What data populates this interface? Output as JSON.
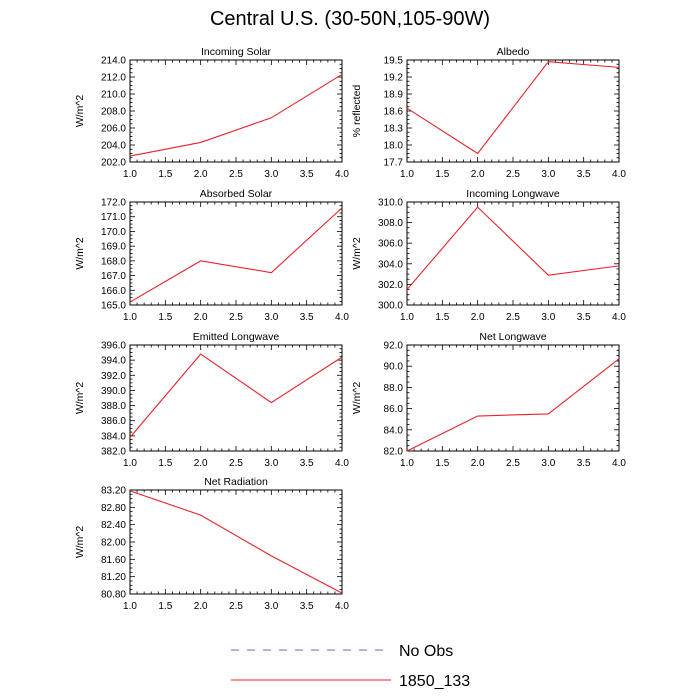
{
  "title": "Central U.S. (30-50N,105-90W)",
  "legend": [
    {
      "label": "No Obs",
      "color": "#6b6bb5",
      "dash": true
    },
    {
      "label": "1850_133",
      "color": "#e8212a",
      "dash": false
    }
  ],
  "chart_data": [
    {
      "type": "line",
      "title": "Incoming Solar",
      "ylabel": "W/m^2",
      "x": [
        1.0,
        2.0,
        3.0,
        4.0
      ],
      "xticks": [
        "1.0",
        "1.5",
        "2.0",
        "2.5",
        "3.0",
        "3.5",
        "4.0"
      ],
      "ylim": [
        202.0,
        214.0
      ],
      "yticks": [
        "202.0",
        "204.0",
        "206.0",
        "208.0",
        "210.0",
        "212.0",
        "214.0"
      ],
      "series": [
        {
          "values": [
            202.7,
            204.3,
            207.2,
            212.3
          ],
          "color": "#e8212a"
        }
      ]
    },
    {
      "type": "line",
      "title": "Albedo",
      "ylabel": "% reflected",
      "x": [
        1.0,
        2.0,
        3.0,
        4.0
      ],
      "xticks": [
        "1.0",
        "1.5",
        "2.0",
        "2.5",
        "3.0",
        "3.5",
        "4.0"
      ],
      "ylim": [
        17.7,
        19.5
      ],
      "yticks": [
        "17.7",
        "18.0",
        "18.3",
        "18.6",
        "18.9",
        "19.2",
        "19.5"
      ],
      "series": [
        {
          "values": [
            18.65,
            17.85,
            19.47,
            19.37
          ],
          "color": "#e8212a"
        }
      ]
    },
    {
      "type": "line",
      "title": "Absorbed Solar",
      "ylabel": "W/m^2",
      "x": [
        1.0,
        2.0,
        3.0,
        4.0
      ],
      "xticks": [
        "1.0",
        "1.5",
        "2.0",
        "2.5",
        "3.0",
        "3.5",
        "4.0"
      ],
      "ylim": [
        165.0,
        172.0
      ],
      "yticks": [
        "165.0",
        "166.0",
        "167.0",
        "168.0",
        "169.0",
        "170.0",
        "171.0",
        "172.0"
      ],
      "series": [
        {
          "values": [
            165.2,
            168.0,
            167.2,
            171.6
          ],
          "color": "#e8212a"
        }
      ]
    },
    {
      "type": "line",
      "title": "Incoming Longwave",
      "ylabel": "W/m^2",
      "x": [
        1.0,
        2.0,
        3.0,
        4.0
      ],
      "xticks": [
        "1.0",
        "1.5",
        "2.0",
        "2.5",
        "3.0",
        "3.5",
        "4.0"
      ],
      "ylim": [
        300.0,
        310.0
      ],
      "yticks": [
        "300.0",
        "302.0",
        "304.0",
        "306.0",
        "308.0",
        "310.0"
      ],
      "series": [
        {
          "values": [
            301.5,
            309.5,
            302.9,
            303.8
          ],
          "color": "#e8212a"
        }
      ]
    },
    {
      "type": "line",
      "title": "Emitted Longwave",
      "ylabel": "W/m^2",
      "x": [
        1.0,
        2.0,
        3.0,
        4.0
      ],
      "xticks": [
        "1.0",
        "1.5",
        "2.0",
        "2.5",
        "3.0",
        "3.5",
        "4.0"
      ],
      "ylim": [
        382.0,
        396.0
      ],
      "yticks": [
        "382.0",
        "384.0",
        "386.0",
        "388.0",
        "390.0",
        "392.0",
        "394.0",
        "396.0"
      ],
      "series": [
        {
          "values": [
            383.8,
            394.8,
            388.4,
            394.4
          ],
          "color": "#e8212a"
        }
      ]
    },
    {
      "type": "line",
      "title": "Net Longwave",
      "ylabel": "W/m^2",
      "x": [
        1.0,
        2.0,
        3.0,
        4.0
      ],
      "xticks": [
        "1.0",
        "1.5",
        "2.0",
        "2.5",
        "3.0",
        "3.5",
        "4.0"
      ],
      "ylim": [
        82.0,
        92.0
      ],
      "yticks": [
        "82.0",
        "84.0",
        "86.0",
        "88.0",
        "90.0",
        "92.0"
      ],
      "series": [
        {
          "values": [
            82.0,
            85.3,
            85.5,
            90.7
          ],
          "color": "#e8212a"
        }
      ]
    },
    {
      "type": "line",
      "title": "Net Radiation",
      "ylabel": "W/m^2",
      "x": [
        1.0,
        2.0,
        3.0,
        4.0
      ],
      "xticks": [
        "1.0",
        "1.5",
        "2.0",
        "2.5",
        "3.0",
        "3.5",
        "4.0"
      ],
      "ylim": [
        80.8,
        83.2
      ],
      "yticks": [
        "80.80",
        "81.20",
        "81.60",
        "82.00",
        "82.40",
        "82.80",
        "83.20"
      ],
      "series": [
        {
          "values": [
            83.18,
            82.62,
            81.68,
            80.82
          ],
          "color": "#e8212a"
        }
      ]
    }
  ]
}
